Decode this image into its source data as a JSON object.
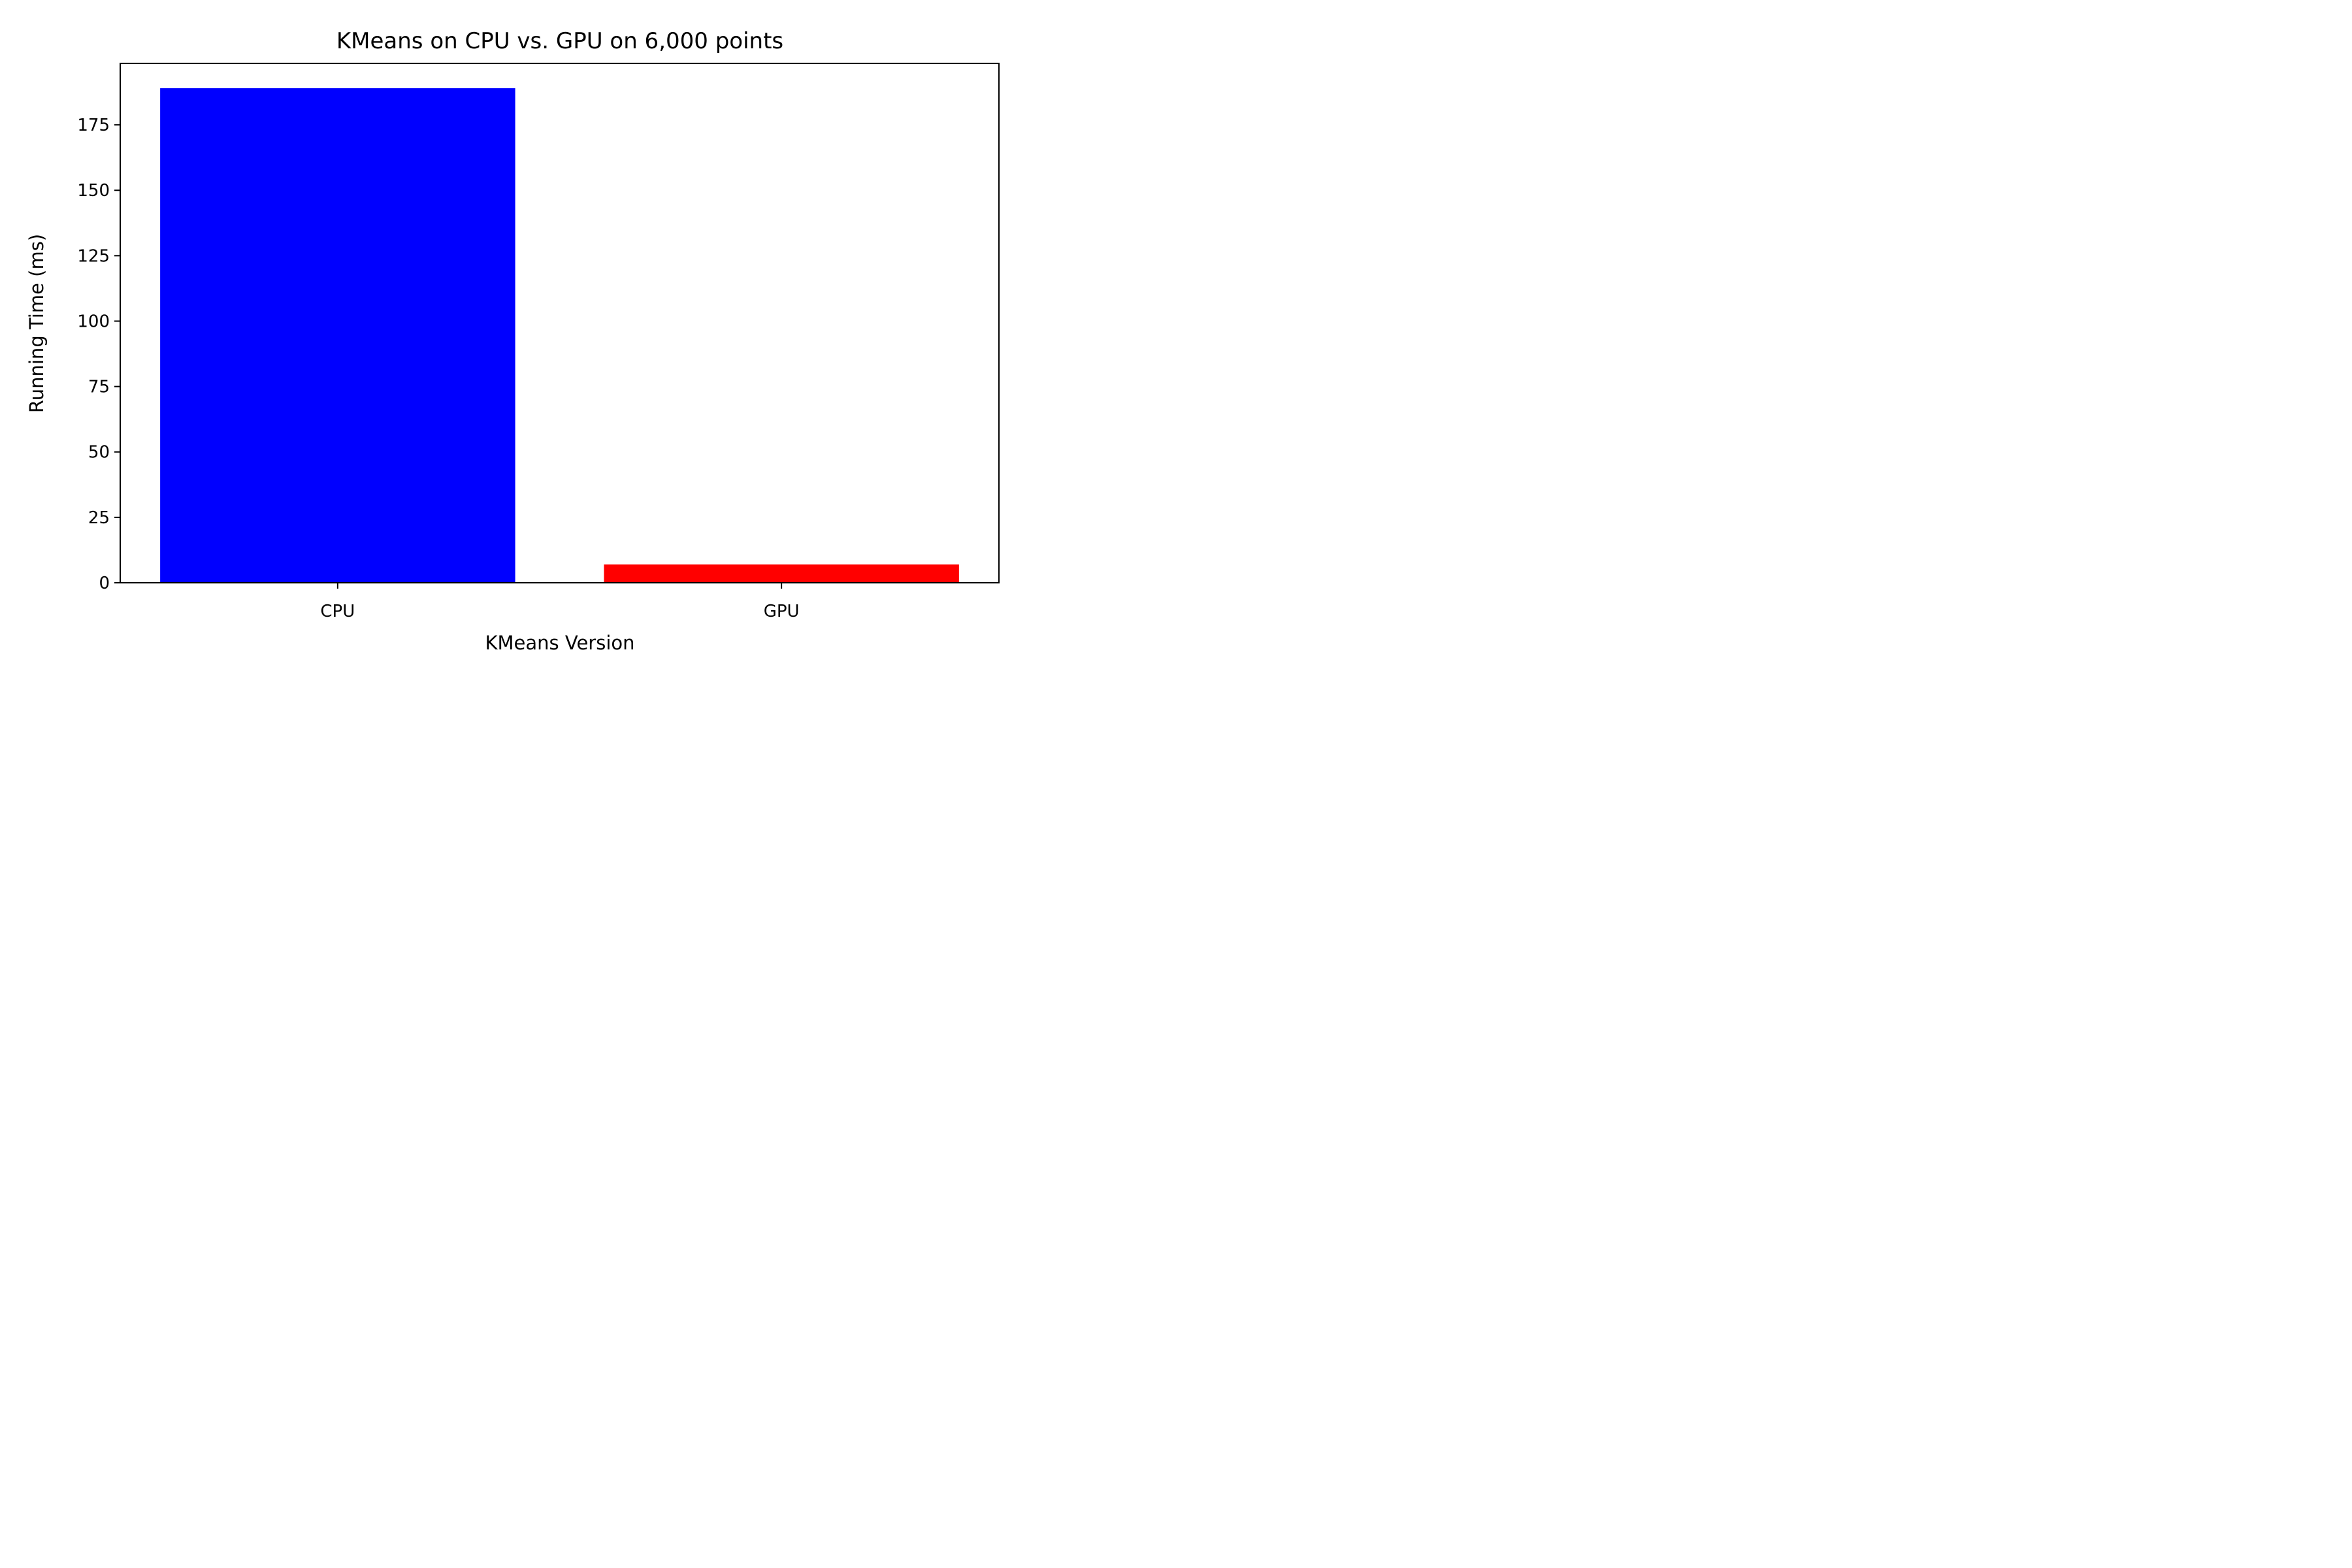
{
  "chart_data": {
    "type": "bar",
    "title": "KMeans on CPU vs. GPU on 6,000 points",
    "xlabel": "KMeans Version",
    "ylabel": "Running Time (ms)",
    "categories": [
      "CPU",
      "GPU"
    ],
    "values": [
      189,
      7
    ],
    "colors": [
      "#0000ff",
      "#ff0000"
    ],
    "ylim": [
      0,
      198.5
    ],
    "yticks": [
      0,
      25,
      50,
      75,
      100,
      125,
      150,
      175
    ],
    "grid": false
  }
}
